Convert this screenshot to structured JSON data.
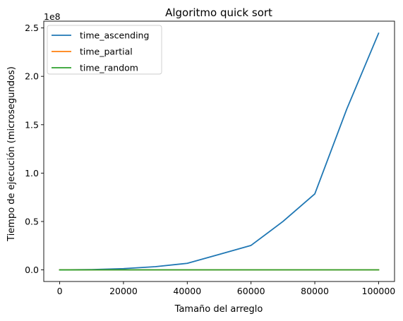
{
  "chart_data": {
    "type": "line",
    "title": "Algoritmo quick sort",
    "xlabel": "Tamaño del arreglo",
    "ylabel": "Tiempo de ejecución (microsegundos)",
    "y_offset_text": "1e8",
    "xlim": [
      -5000,
      105000
    ],
    "ylim": [
      -12000000,
      257000000
    ],
    "xticks": [
      0,
      20000,
      40000,
      60000,
      80000,
      100000
    ],
    "xtick_labels": [
      "0",
      "20000",
      "40000",
      "60000",
      "80000",
      "100000"
    ],
    "yticks": [
      0,
      50000000,
      100000000,
      150000000,
      200000000,
      250000000
    ],
    "ytick_labels": [
      "0.0",
      "0.5",
      "1.0",
      "1.5",
      "2.0",
      "2.5"
    ],
    "grid": false,
    "legend_position": "upper-left",
    "series": [
      {
        "name": "time_ascending",
        "color": "#1f77b4",
        "x": [
          0,
          10000,
          20000,
          30000,
          40000,
          50000,
          60000,
          70000,
          80000,
          90000,
          100000
        ],
        "values": [
          0,
          300000,
          1300000,
          3300000,
          6800000,
          16000000,
          25300000,
          50000000,
          78500000,
          166000000,
          244500000
        ]
      },
      {
        "name": "time_partial",
        "color": "#ff7f0e",
        "x": [
          0,
          10000,
          20000,
          30000,
          40000,
          50000,
          60000,
          70000,
          80000,
          90000,
          100000
        ],
        "values": [
          0,
          5000,
          10000,
          15000,
          20000,
          25000,
          30000,
          35000,
          40000,
          45000,
          50000
        ]
      },
      {
        "name": "time_random",
        "color": "#2ca02c",
        "x": [
          0,
          10000,
          20000,
          30000,
          40000,
          50000,
          60000,
          70000,
          80000,
          90000,
          100000
        ],
        "values": [
          0,
          4000,
          8000,
          12000,
          16000,
          20000,
          24000,
          28000,
          32000,
          36000,
          40000
        ]
      }
    ]
  }
}
